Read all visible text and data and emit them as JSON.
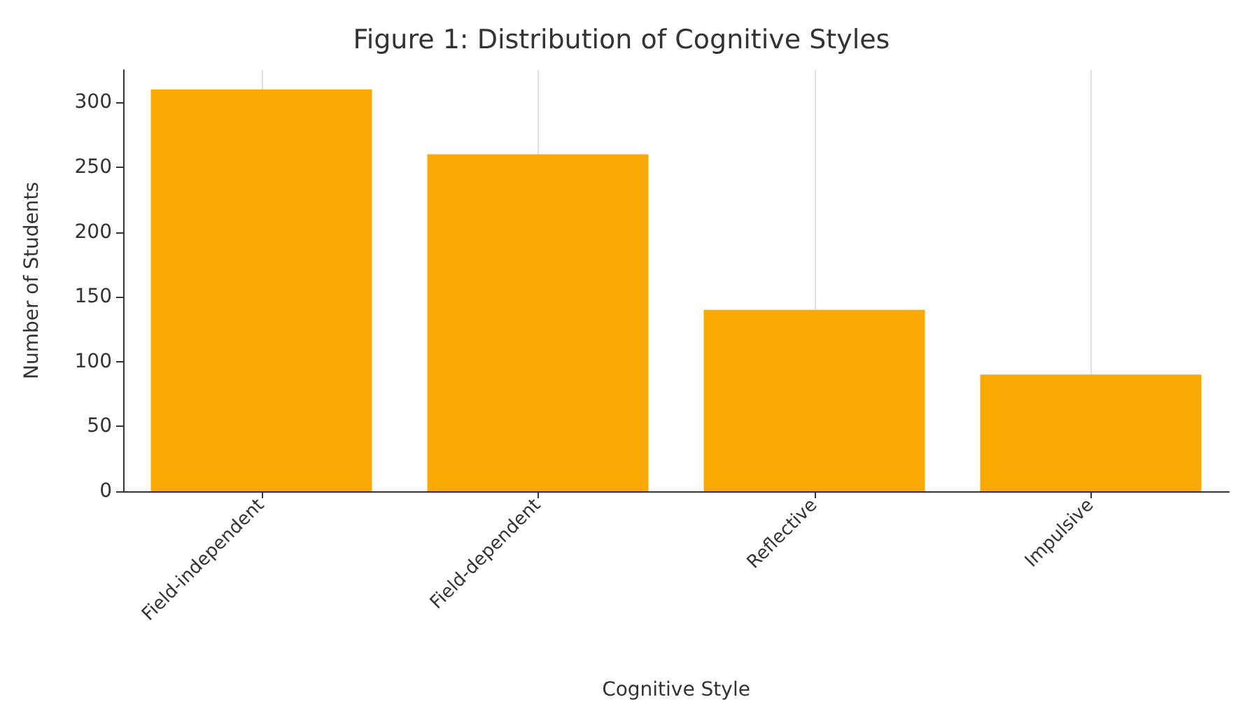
{
  "chart_data": {
    "type": "bar",
    "title": "Figure 1: Distribution of Cognitive Styles",
    "xlabel": "Cognitive Style",
    "ylabel": "Number of Students",
    "categories": [
      "Field-independent",
      "Field-dependent",
      "Reflective",
      "Impulsive"
    ],
    "values": [
      310,
      260,
      140,
      90
    ],
    "color": "#f9aa00",
    "ylim": [
      0,
      325
    ],
    "yticks": [
      0,
      50,
      100,
      150,
      200,
      250,
      300
    ],
    "grid": "x"
  }
}
